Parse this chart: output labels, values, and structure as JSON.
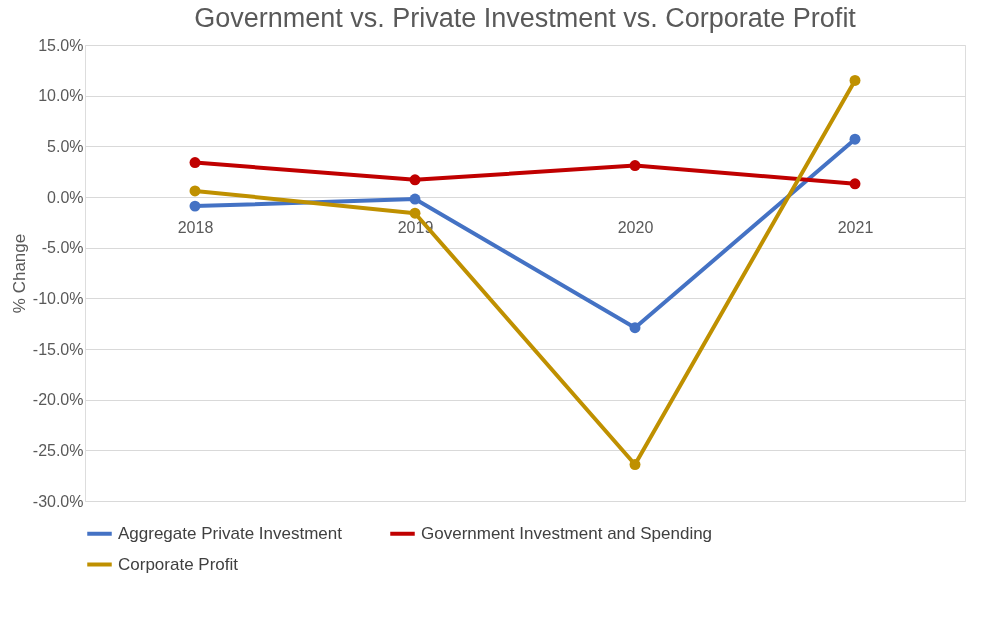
{
  "chart_data": {
    "type": "line",
    "title": "Government vs. Private Investment vs. Corporate Profit",
    "ylabel": "% Change",
    "categories": [
      "2018",
      "2019",
      "2020",
      "2021"
    ],
    "series": [
      {
        "name": "Aggregate Private Investment",
        "color": "#4472c4",
        "values": [
          -0.9,
          -0.2,
          -12.9,
          5.7
        ]
      },
      {
        "name": "Government Investment and Spending",
        "color": "#c00000",
        "values": [
          3.4,
          1.7,
          3.1,
          1.3
        ]
      },
      {
        "name": "Corporate Profit",
        "color": "#bf9000",
        "values": [
          0.6,
          -1.6,
          -26.4,
          11.5
        ]
      }
    ],
    "ylim": [
      -30,
      15
    ],
    "yticks": [
      {
        "value": -30,
        "label": "-30.0%"
      },
      {
        "value": -25,
        "label": "-25.0%"
      },
      {
        "value": -20,
        "label": "-20.0%"
      },
      {
        "value": -15,
        "label": "-15.0%"
      },
      {
        "value": -10,
        "label": "-10.0%"
      },
      {
        "value": -5,
        "label": "-5.0%"
      },
      {
        "value": 0,
        "label": "0.0%"
      },
      {
        "value": 5,
        "label": "5.0%"
      },
      {
        "value": 10,
        "label": "10.0%"
      },
      {
        "value": 15,
        "label": "15.0%"
      }
    ],
    "grid": "y",
    "legend": "bottom",
    "marker": "circle",
    "line_style": "solid"
  }
}
